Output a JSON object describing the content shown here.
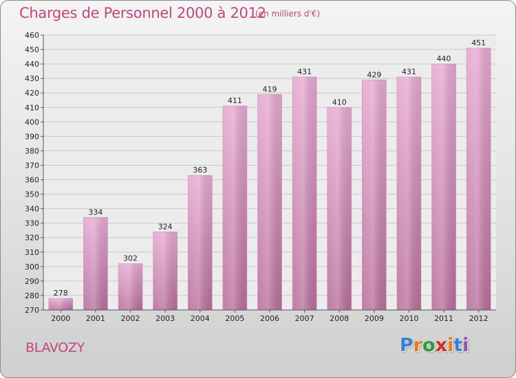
{
  "title": "Charges de Personnel 2000 à 2012",
  "subtitle": "(en milliers d'€)",
  "commune": "BLAVOZY",
  "logo": {
    "letters": [
      "P",
      "r",
      "o",
      "x",
      "i",
      "t",
      "i"
    ],
    "colors": [
      "#3a7fd0",
      "#e87a1e",
      "#2f9a3a",
      "#d42b2b",
      "#e87a1e",
      "#3a7fd0",
      "#8a4fb5"
    ]
  },
  "colors": {
    "bar_top": "#e6a9d2",
    "bar_bottom": "#b86f9c",
    "text_accent": "#c4457d"
  },
  "chart_data": {
    "type": "bar",
    "categories": [
      "2000",
      "2001",
      "2002",
      "2003",
      "2004",
      "2005",
      "2006",
      "2007",
      "2008",
      "2009",
      "2010",
      "2011",
      "2012"
    ],
    "values": [
      278,
      334,
      302,
      324,
      363,
      411,
      419,
      431,
      410,
      429,
      431,
      440,
      451
    ],
    "ylim": [
      270,
      460
    ],
    "yticks": [
      270,
      280,
      290,
      300,
      310,
      320,
      330,
      340,
      350,
      360,
      370,
      380,
      390,
      400,
      410,
      420,
      430,
      440,
      450,
      460
    ],
    "grid": true,
    "data_labels": true
  }
}
